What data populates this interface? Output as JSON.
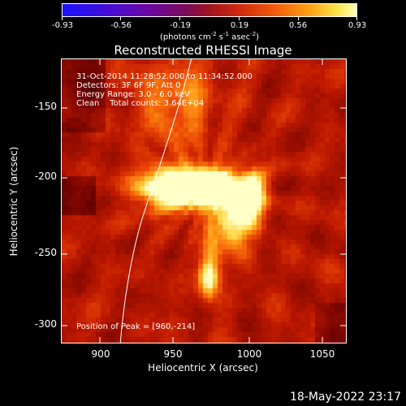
{
  "colorbar": {
    "ticks": [
      "-0.93",
      "-0.56",
      "-0.19",
      "0.19",
      "0.56",
      "0.93"
    ],
    "unit_main": "(photons cm",
    "unit_exp1": "-2",
    "unit_s": " s",
    "unit_exp2": "-1",
    "unit_asec": " asec",
    "unit_exp3": "-2",
    "unit_end": ")"
  },
  "title": "Reconstructed RHESSI Image",
  "annotations": {
    "time": "31-Oct-2014 11:28:52.000 to 11:34:52.000",
    "detectors": "Detectors: 3F 6F 9F, Att 0",
    "energy": "Energy Range: 3.0 - 6.0 keV",
    "clean": "Clean    Total counts: 3.64E+04",
    "peak": "Position of Peak = [960,-214]"
  },
  "axes": {
    "xlabel": "Heliocentric X (arcsec)",
    "ylabel": "Heliocentric Y (arcsec)",
    "xticks": [
      "900",
      "950",
      "1000",
      "1050"
    ],
    "yticks": [
      "-150",
      "-200",
      "-250",
      "-300"
    ]
  },
  "image": {
    "x_range": [
      873,
      1066
    ],
    "y_range": [
      -125,
      -313
    ],
    "peak_x": 960,
    "peak_y": -214
  },
  "timestamp": "18-May-2022 23:17"
}
